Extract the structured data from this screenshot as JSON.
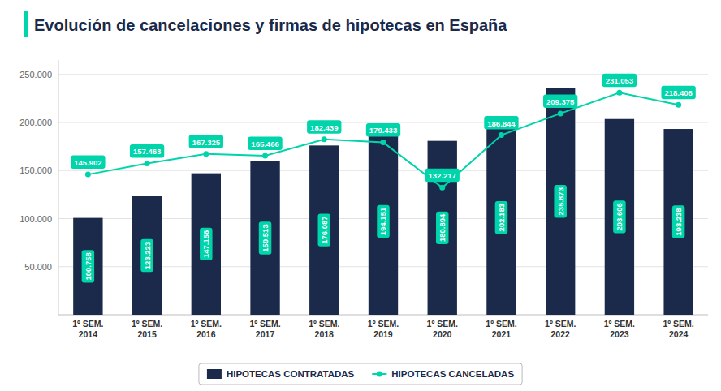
{
  "chart_data": {
    "type": "bar",
    "title": "Evolución de cancelaciones y firmas de hipotecas en España",
    "categories": [
      "1º SEM.\n2014",
      "1º SEM.\n2015",
      "1º SEM.\n2016",
      "1º SEM.\n2017",
      "1º SEM.\n2018",
      "1º SEM.\n2019",
      "1º SEM.\n2020",
      "1º SEM.\n2021",
      "1º SEM.\n2022",
      "1º SEM.\n2023",
      "1º SEM.\n2024"
    ],
    "series": [
      {
        "name": "HIPOTECAS CONTRATADAS",
        "type": "bar",
        "color": "#1b2a4a",
        "values": [
          100758,
          123223,
          147156,
          159513,
          176087,
          194151,
          180894,
          202183,
          235873,
          203606,
          193238
        ],
        "value_labels": [
          "100.758",
          "123.223",
          "147.156",
          "159.513",
          "176.087",
          "194.151",
          "180.894",
          "202.183",
          "235.873",
          "203.606",
          "193.238"
        ]
      },
      {
        "name": "HIPOTECAS CANCELADAS",
        "type": "line",
        "color": "#00d4aa",
        "marker": "circle",
        "line_style": "solid",
        "values": [
          145902,
          157463,
          167325,
          165466,
          182439,
          179433,
          132217,
          186844,
          209375,
          231053,
          218408
        ],
        "value_labels": [
          "145.902",
          "157.463",
          "167.325",
          "165.466",
          "182.439",
          "179.433",
          "132.217",
          "186.844",
          "209.375",
          "231.053",
          "218.408"
        ]
      }
    ],
    "ylim": [
      0,
      265000
    ],
    "yticks": [
      {
        "value": 0,
        "label": "-"
      },
      {
        "value": 50000,
        "label": "50.000"
      },
      {
        "value": 100000,
        "label": "100.000"
      },
      {
        "value": 150000,
        "label": "150.000"
      },
      {
        "value": 200000,
        "label": "200.000"
      },
      {
        "value": 250000,
        "label": "250.000"
      }
    ],
    "grid": true,
    "legend": "bottom",
    "data_labels": true
  }
}
